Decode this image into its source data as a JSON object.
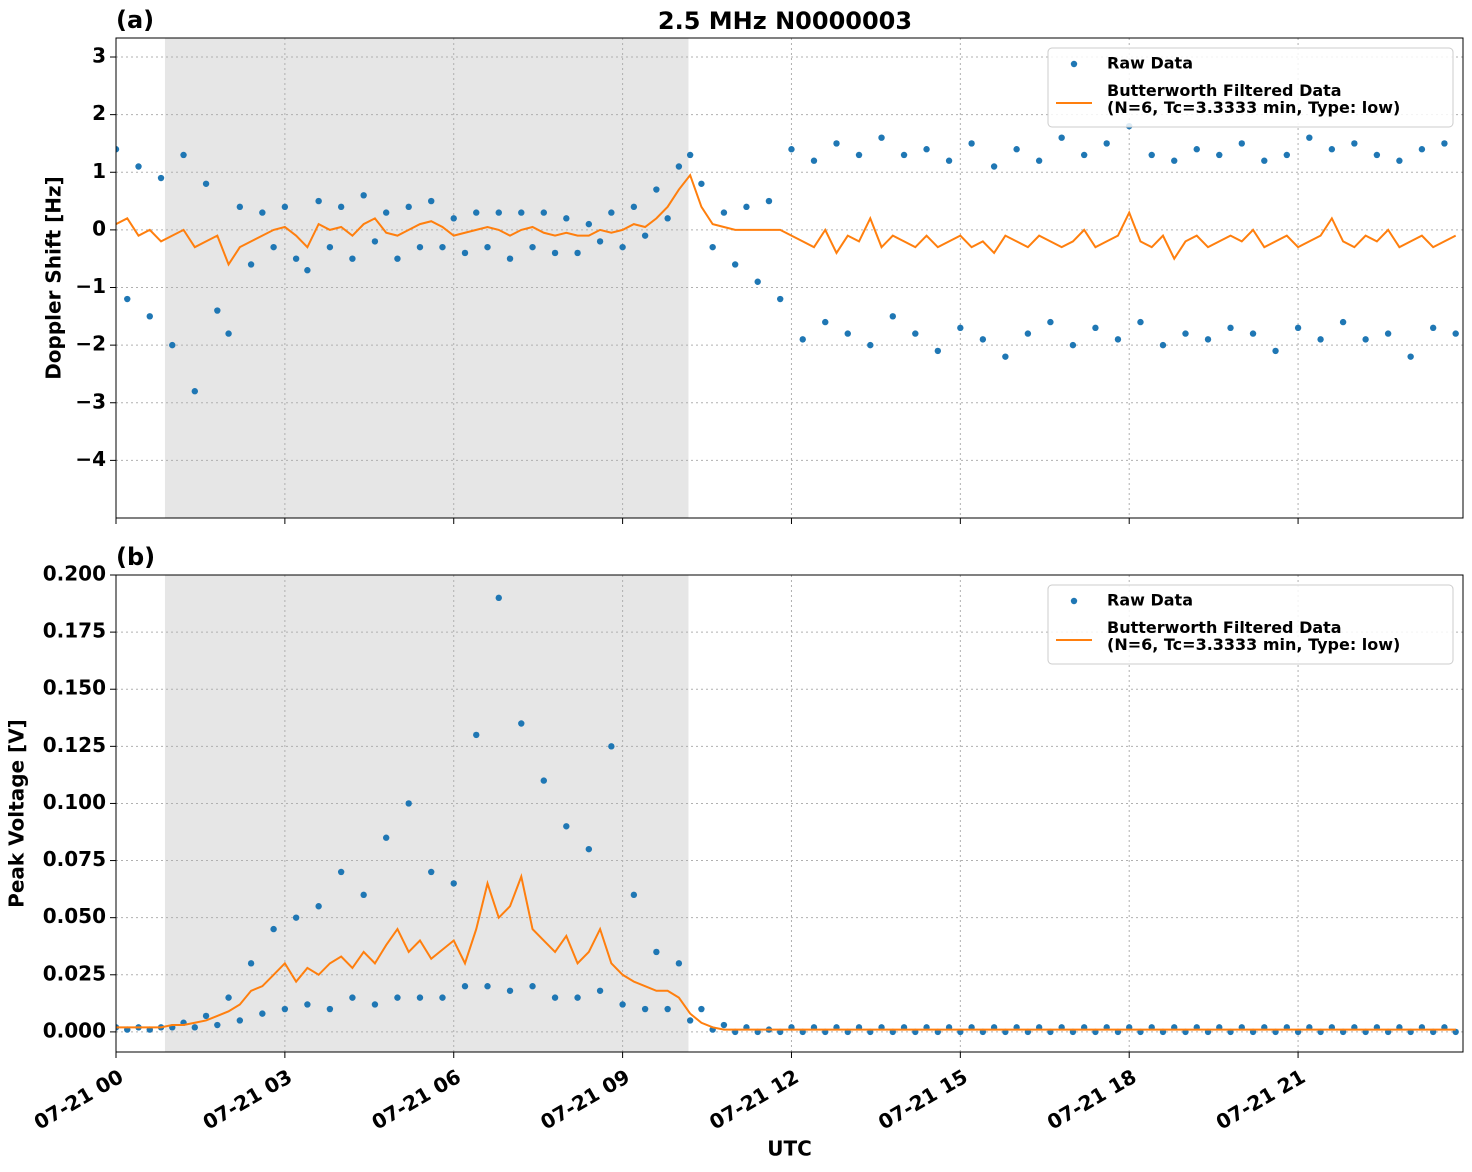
{
  "chart_data": [
    {
      "type": "scatter-line",
      "title": "2.5 MHz N0000003",
      "panel_label": "(a)",
      "y_label": "Doppler Shift [Hz]",
      "xlim": [
        0,
        23.93
      ],
      "xticks": [
        0,
        3,
        6,
        9,
        12,
        15,
        18,
        21
      ],
      "ylim": [
        -5,
        3.33
      ],
      "yticks": [
        {
          "value": -4,
          "label": "−4"
        },
        {
          "value": -3,
          "label": "−3"
        },
        {
          "value": -2,
          "label": "−2"
        },
        {
          "value": -1,
          "label": "−1"
        },
        0,
        1,
        2,
        3
      ],
      "grid": true,
      "legend": "upper right",
      "shaded_span": [
        0.87,
        10.17
      ],
      "shade_color": "#e6e6e6",
      "x": [
        0,
        0.2,
        0.4,
        0.6,
        0.8,
        1,
        1.2,
        1.4,
        1.6,
        1.8,
        2,
        2.2,
        2.4,
        2.6,
        2.8,
        3,
        3.2,
        3.4,
        3.6,
        3.8,
        4,
        4.2,
        4.4,
        4.6,
        4.8,
        5,
        5.2,
        5.4,
        5.6,
        5.8,
        6,
        6.2,
        6.4,
        6.6,
        6.8,
        7,
        7.2,
        7.4,
        7.6,
        7.8,
        8,
        8.2,
        8.4,
        8.6,
        8.8,
        9,
        9.2,
        9.4,
        9.6,
        9.8,
        10,
        10.2,
        10.4,
        10.6,
        10.8,
        11,
        11.2,
        11.4,
        11.6,
        11.8,
        12,
        12.2,
        12.4,
        12.6,
        12.8,
        13,
        13.2,
        13.4,
        13.6,
        13.8,
        14,
        14.2,
        14.4,
        14.6,
        14.8,
        15,
        15.2,
        15.4,
        15.6,
        15.8,
        16,
        16.2,
        16.4,
        16.6,
        16.8,
        17,
        17.2,
        17.4,
        17.6,
        17.8,
        18,
        18.2,
        18.4,
        18.6,
        18.8,
        19,
        19.2,
        19.4,
        19.6,
        19.8,
        20,
        20.2,
        20.4,
        20.6,
        20.8,
        21,
        21.2,
        21.4,
        21.6,
        21.8,
        22,
        22.2,
        22.4,
        22.6,
        22.8,
        23,
        23.2,
        23.4,
        23.6,
        23.8
      ],
      "series": [
        {
          "name": "Raw Data",
          "kind": "scatter",
          "color": "#1f77b4",
          "values": [
            1.4,
            -1.2,
            1.1,
            -1.5,
            0.9,
            -2.0,
            1.3,
            -2.8,
            0.8,
            -1.4,
            -1.8,
            0.4,
            -0.6,
            0.3,
            -0.3,
            0.4,
            -0.5,
            -0.7,
            0.5,
            -0.3,
            0.4,
            -0.5,
            0.6,
            -0.2,
            0.3,
            -0.5,
            0.4,
            -0.3,
            0.5,
            -0.3,
            0.2,
            -0.4,
            0.3,
            -0.3,
            0.3,
            -0.5,
            0.3,
            -0.3,
            0.3,
            -0.4,
            0.2,
            -0.4,
            0.1,
            -0.2,
            0.3,
            -0.3,
            0.4,
            -0.1,
            0.7,
            0.2,
            1.1,
            1.3,
            0.8,
            -0.3,
            0.3,
            -0.6,
            0.4,
            -0.9,
            0.5,
            -1.2,
            1.4,
            -1.9,
            1.2,
            -1.6,
            1.5,
            -1.8,
            1.3,
            -2.0,
            1.6,
            -1.5,
            1.3,
            -1.8,
            1.4,
            -2.1,
            1.2,
            -1.7,
            1.5,
            -1.9,
            1.1,
            -2.2,
            1.4,
            -1.8,
            1.2,
            -1.6,
            1.6,
            -2.0,
            1.3,
            -1.7,
            1.5,
            -1.9,
            1.8,
            -1.6,
            1.3,
            -2.0,
            1.2,
            -1.8,
            1.4,
            -1.9,
            1.3,
            -1.7,
            1.5,
            -1.8,
            1.2,
            -2.1,
            1.3,
            -1.7,
            1.6,
            -1.9,
            1.4,
            -1.6,
            1.5,
            -1.9,
            1.3,
            -1.8,
            1.2,
            -2.2,
            1.4,
            -1.7,
            1.5,
            -1.8
          ]
        },
        {
          "name": "Butterworth Filtered Data\n(N=6, Tc=3.3333 min, Type: low)",
          "kind": "line",
          "color": "#ff7f0e",
          "values": [
            0.1,
            0.2,
            -0.1,
            0,
            -0.2,
            -0.1,
            0,
            -0.3,
            -0.2,
            -0.1,
            -0.6,
            -0.3,
            -0.2,
            -0.1,
            0,
            0.05,
            -0.1,
            -0.3,
            0.1,
            0,
            0.05,
            -0.1,
            0.1,
            0.2,
            -0.05,
            -0.1,
            0,
            0.1,
            0.15,
            0.05,
            -0.1,
            -0.05,
            0,
            0.05,
            0,
            -0.1,
            0,
            0.05,
            -0.05,
            -0.1,
            -0.05,
            -0.1,
            -0.1,
            0,
            -0.05,
            0,
            0.1,
            0.05,
            0.2,
            0.4,
            0.7,
            0.95,
            0.4,
            0.1,
            0.05,
            0,
            0,
            0,
            0,
            0,
            -0.1,
            -0.2,
            -0.3,
            0,
            -0.4,
            -0.1,
            -0.2,
            0.2,
            -0.3,
            -0.1,
            -0.2,
            -0.3,
            -0.1,
            -0.3,
            -0.2,
            -0.1,
            -0.3,
            -0.2,
            -0.4,
            -0.1,
            -0.2,
            -0.3,
            -0.1,
            -0.2,
            -0.3,
            -0.2,
            0,
            -0.3,
            -0.2,
            -0.1,
            0.3,
            -0.2,
            -0.3,
            -0.1,
            -0.5,
            -0.2,
            -0.1,
            -0.3,
            -0.2,
            -0.1,
            -0.2,
            0,
            -0.3,
            -0.2,
            -0.1,
            -0.3,
            -0.2,
            -0.1,
            0.2,
            -0.2,
            -0.3,
            -0.1,
            -0.2,
            0,
            -0.3,
            -0.2,
            -0.1,
            -0.3,
            -0.2,
            -0.1
          ]
        }
      ]
    },
    {
      "type": "scatter-line",
      "panel_label": "(b)",
      "y_label": "Peak Voltage [V]",
      "x_label": "UTC",
      "xlim": [
        0,
        23.93
      ],
      "xticks": [
        {
          "value": 0,
          "label": "07-21 00"
        },
        {
          "value": 3,
          "label": "07-21 03"
        },
        {
          "value": 6,
          "label": "07-21 06"
        },
        {
          "value": 9,
          "label": "07-21 09"
        },
        {
          "value": 12,
          "label": "07-21 12"
        },
        {
          "value": 15,
          "label": "07-21 15"
        },
        {
          "value": 18,
          "label": "07-21 18"
        },
        {
          "value": 21,
          "label": "07-21 21"
        }
      ],
      "ylim": [
        -0.0088,
        0.2
      ],
      "yticks": [
        {
          "value": 0,
          "label": "0.000"
        },
        {
          "value": 0.025,
          "label": "0.025"
        },
        {
          "value": 0.05,
          "label": "0.050"
        },
        {
          "value": 0.075,
          "label": "0.075"
        },
        {
          "value": 0.1,
          "label": "0.100"
        },
        {
          "value": 0.125,
          "label": "0.125"
        },
        {
          "value": 0.15,
          "label": "0.150"
        },
        {
          "value": 0.175,
          "label": "0.175"
        },
        {
          "value": 0.2,
          "label": "0.200"
        }
      ],
      "grid": true,
      "legend": "upper right",
      "shaded_span": [
        0.87,
        10.17
      ],
      "shade_color": "#e6e6e6",
      "x": [
        0,
        0.2,
        0.4,
        0.6,
        0.8,
        1,
        1.2,
        1.4,
        1.6,
        1.8,
        2,
        2.2,
        2.4,
        2.6,
        2.8,
        3,
        3.2,
        3.4,
        3.6,
        3.8,
        4,
        4.2,
        4.4,
        4.6,
        4.8,
        5,
        5.2,
        5.4,
        5.6,
        5.8,
        6,
        6.2,
        6.4,
        6.6,
        6.8,
        7,
        7.2,
        7.4,
        7.6,
        7.8,
        8,
        8.2,
        8.4,
        8.6,
        8.8,
        9,
        9.2,
        9.4,
        9.6,
        9.8,
        10,
        10.2,
        10.4,
        10.6,
        10.8,
        11,
        11.2,
        11.4,
        11.6,
        11.8,
        12,
        12.2,
        12.4,
        12.6,
        12.8,
        13,
        13.2,
        13.4,
        13.6,
        13.8,
        14,
        14.2,
        14.4,
        14.6,
        14.8,
        15,
        15.2,
        15.4,
        15.6,
        15.8,
        16,
        16.2,
        16.4,
        16.6,
        16.8,
        17,
        17.2,
        17.4,
        17.6,
        17.8,
        18,
        18.2,
        18.4,
        18.6,
        18.8,
        19,
        19.2,
        19.4,
        19.6,
        19.8,
        20,
        20.2,
        20.4,
        20.6,
        20.8,
        21,
        21.2,
        21.4,
        21.6,
        21.8,
        22,
        22.2,
        22.4,
        22.6,
        22.8,
        23,
        23.2,
        23.4,
        23.6,
        23.8
      ],
      "series": [
        {
          "name": "Raw Data",
          "kind": "scatter",
          "color": "#1f77b4",
          "values": [
            0.002,
            0.001,
            0.002,
            0.001,
            0.002,
            0.002,
            0.004,
            0.002,
            0.007,
            0.003,
            0.015,
            0.005,
            0.03,
            0.008,
            0.045,
            0.01,
            0.05,
            0.012,
            0.055,
            0.01,
            0.07,
            0.015,
            0.06,
            0.012,
            0.085,
            0.015,
            0.1,
            0.015,
            0.07,
            0.015,
            0.065,
            0.02,
            0.13,
            0.02,
            0.19,
            0.018,
            0.135,
            0.02,
            0.11,
            0.015,
            0.09,
            0.015,
            0.08,
            0.018,
            0.125,
            0.012,
            0.06,
            0.01,
            0.035,
            0.01,
            0.03,
            0.005,
            0.01,
            0.001,
            0.003,
            0,
            0.002,
            0,
            0.001,
            0,
            0.002,
            0,
            0.002,
            0,
            0.002,
            0,
            0.002,
            0,
            0.002,
            0,
            0.002,
            0,
            0.002,
            0,
            0.002,
            0,
            0.002,
            0,
            0.002,
            0,
            0.002,
            0,
            0.002,
            0,
            0.002,
            0,
            0.002,
            0,
            0.002,
            0,
            0.002,
            0,
            0.002,
            0,
            0.002,
            0,
            0.002,
            0,
            0.002,
            0,
            0.002,
            0,
            0.002,
            0,
            0.002,
            0,
            0.002,
            0,
            0.002,
            0,
            0.002,
            0,
            0.002,
            0,
            0.002,
            0,
            0.002,
            0,
            0.002,
            0
          ]
        },
        {
          "name": "Butterworth Filtered Data\n(N=6, Tc=3.3333 min, Type: low)",
          "kind": "line",
          "color": "#ff7f0e",
          "values": [
            0.002,
            0.002,
            0.002,
            0.002,
            0.002,
            0.003,
            0.003,
            0.004,
            0.005,
            0.007,
            0.009,
            0.012,
            0.018,
            0.02,
            0.025,
            0.03,
            0.022,
            0.028,
            0.025,
            0.03,
            0.033,
            0.028,
            0.035,
            0.03,
            0.038,
            0.045,
            0.035,
            0.04,
            0.032,
            0.036,
            0.04,
            0.03,
            0.045,
            0.065,
            0.05,
            0.055,
            0.068,
            0.045,
            0.04,
            0.035,
            0.042,
            0.03,
            0.035,
            0.045,
            0.03,
            0.025,
            0.022,
            0.02,
            0.018,
            0.018,
            0.015,
            0.008,
            0.004,
            0.002,
            0.001,
            0.001,
            0.001,
            0.001,
            0.001,
            0.001,
            0.001,
            0.001,
            0.001,
            0.001,
            0.001,
            0.001,
            0.001,
            0.001,
            0.001,
            0.001,
            0.001,
            0.001,
            0.001,
            0.001,
            0.001,
            0.001,
            0.001,
            0.001,
            0.001,
            0.001,
            0.001,
            0.001,
            0.001,
            0.001,
            0.001,
            0.001,
            0.001,
            0.001,
            0.001,
            0.001,
            0.001,
            0.001,
            0.001,
            0.001,
            0.001,
            0.001,
            0.001,
            0.001,
            0.001,
            0.001,
            0.001,
            0.001,
            0.001,
            0.001,
            0.001,
            0.001,
            0.001,
            0.001,
            0.001,
            0.001,
            0.001,
            0.001,
            0.001,
            0.001,
            0.001,
            0.001,
            0.001,
            0.001,
            0.001,
            0.001
          ]
        }
      ]
    }
  ]
}
